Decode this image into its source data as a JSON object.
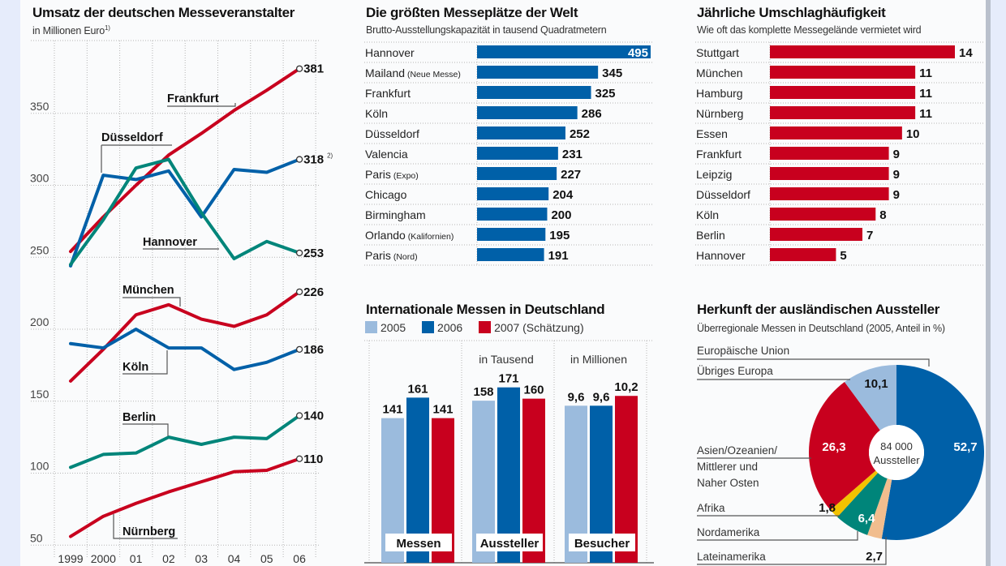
{
  "colors": {
    "red": "#c8001e",
    "blue": "#0060a8",
    "teal": "#00857a",
    "light_blue": "#9bbbdd",
    "yellow": "#f2c200",
    "peach": "#f1bd8e",
    "background": "#e6ecfb"
  },
  "chart_data": [
    {
      "type": "line",
      "title": "Umsatz der deutschen Messeveranstalter",
      "subtitle": "in Millionen Euro",
      "subtitle_footnote": "1)",
      "xlabel": "",
      "ylabel": "",
      "x": [
        "1999",
        "2000",
        "01",
        "02",
        "03",
        "04",
        "05",
        "06"
      ],
      "yticks": [
        50,
        100,
        150,
        200,
        250,
        300,
        350
      ],
      "ylim": [
        50,
        390
      ],
      "grid": true,
      "series": [
        {
          "name": "Frankfurt",
          "color": "#c8001e",
          "values": [
            254,
            278,
            300,
            321,
            336,
            352,
            366,
            381
          ],
          "end_label": "381",
          "end_footnote": ""
        },
        {
          "name": "Düsseldorf",
          "color": "#0060a8",
          "values": [
            244,
            307,
            304,
            310,
            278,
            311,
            309,
            318
          ],
          "end_label": "318",
          "end_footnote": "2)"
        },
        {
          "name": "Hannover",
          "color": "#00857a",
          "values": [
            245,
            276,
            312,
            318,
            281,
            249,
            261,
            253
          ],
          "end_label": "253",
          "end_footnote": ""
        },
        {
          "name": "München",
          "color": "#c8001e",
          "values": [
            164,
            186,
            210,
            217,
            207,
            202,
            210,
            226
          ],
          "end_label": "226",
          "end_footnote": ""
        },
        {
          "name": "Köln",
          "color": "#0060a8",
          "values": [
            190,
            187,
            200,
            187,
            187,
            172,
            177,
            186
          ],
          "end_label": "186",
          "end_footnote": ""
        },
        {
          "name": "Berlin",
          "color": "#00857a",
          "values": [
            104,
            113,
            114,
            125,
            120,
            125,
            124,
            140
          ],
          "end_label": "140",
          "end_footnote": ""
        },
        {
          "name": "Nürnberg",
          "color": "#c8001e",
          "values": [
            56,
            70,
            79,
            87,
            94,
            101,
            102,
            110
          ],
          "end_label": "110",
          "end_footnote": ""
        }
      ]
    },
    {
      "type": "bar",
      "orientation": "horizontal",
      "title": "Die größten Messeplätze der Welt",
      "subtitle": "Brutto-Ausstellungskapazität in tausend Quadratmetern",
      "categories": [
        {
          "name": "Hannover",
          "note": ""
        },
        {
          "name": "Mailand",
          "note": "(Neue Messe)"
        },
        {
          "name": "Frankfurt",
          "note": ""
        },
        {
          "name": "Köln",
          "note": ""
        },
        {
          "name": "Düsseldorf",
          "note": ""
        },
        {
          "name": "Valencia",
          "note": ""
        },
        {
          "name": "Paris",
          "note": "(Expo)"
        },
        {
          "name": "Chicago",
          "note": ""
        },
        {
          "name": "Birmingham",
          "note": ""
        },
        {
          "name": "Orlando",
          "note": "(Kalifornien)"
        },
        {
          "name": "Paris",
          "note": "(Nord)"
        }
      ],
      "values": [
        495,
        345,
        325,
        286,
        252,
        231,
        227,
        204,
        200,
        195,
        191
      ],
      "labels": [
        "495",
        "345",
        "325",
        "286",
        "252",
        "231",
        "227",
        "204",
        "200",
        "195",
        "191"
      ],
      "color": "#0060a8",
      "xlim": [
        0,
        495
      ]
    },
    {
      "type": "bar",
      "orientation": "horizontal",
      "title": "Jährliche Umschlaghäufigkeit",
      "subtitle": "Wie oft das komplette Messegelände vermietet wird",
      "categories": [
        "Stuttgart",
        "München",
        "Hamburg",
        "Nürnberg",
        "Essen",
        "Frankfurt",
        "Leipzig",
        "Düsseldorf",
        "Köln",
        "Berlin",
        "Hannover"
      ],
      "values": [
        14,
        11,
        11,
        11,
        10,
        9,
        9,
        9,
        8,
        7,
        5
      ],
      "labels": [
        "14",
        "11",
        "11",
        "11",
        "10",
        "9",
        "9",
        "9",
        "8",
        "7",
        "5"
      ],
      "color": "#c8001e",
      "xlim": [
        0,
        14
      ]
    },
    {
      "type": "bar",
      "title": "Internationale Messen in Deutschland",
      "legend": [
        {
          "name": "2005",
          "color": "#9bbbdd"
        },
        {
          "name": "2006",
          "color": "#0060a8"
        },
        {
          "name": "2007 (Schätzung)",
          "color": "#c8001e"
        }
      ],
      "legend_position": "top-left",
      "groups": [
        {
          "name": "Messen",
          "unit": "",
          "values": [
            141,
            161,
            141
          ],
          "labels": [
            "141",
            "161",
            "141"
          ],
          "ylim": [
            0,
            185
          ]
        },
        {
          "name": "Aussteller",
          "unit": "in Tausend",
          "values": [
            158,
            171,
            160
          ],
          "labels": [
            "158",
            "171",
            "160"
          ],
          "ylim": [
            0,
            185
          ]
        },
        {
          "name": "Besucher",
          "unit": "in Millionen",
          "values": [
            9.6,
            9.6,
            10.2
          ],
          "labels": [
            "9,6",
            "9,6",
            "10,2"
          ],
          "ylim": [
            0,
            11.6
          ]
        }
      ]
    },
    {
      "type": "pie",
      "variant": "donut",
      "title": "Herkunft der ausländischen Aussteller",
      "subtitle": "Überregionale Messen in Deutschland (2005, Anteil in %)",
      "center_label": [
        "84 000",
        "Aussteller"
      ],
      "slices": [
        {
          "name": "Europäische Union",
          "value": 52.7,
          "label": "52,7",
          "color": "#0060a8"
        },
        {
          "name": "Lateinamerika",
          "value": 2.7,
          "label": "2,7",
          "color": "#f1bd8e"
        },
        {
          "name": "Nordamerika",
          "value": 6.4,
          "label": "6,4",
          "color": "#00857a"
        },
        {
          "name": "Afrika",
          "value": 1.8,
          "label": "1,8",
          "color": "#f2c200"
        },
        {
          "name": "Asien/Ozeanien/ Mittlerer und Naher Osten",
          "value": 26.3,
          "label": "26,3",
          "color": "#c8001e"
        },
        {
          "name": "Übriges Europa",
          "value": 10.1,
          "label": "10,1",
          "color": "#9bbbdd"
        }
      ],
      "legend_labels": {
        "eu": "Europäische Union",
        "europe_other": "Übriges Europa",
        "asia": [
          "Asien/Ozeanien/",
          "Mittlerer und",
          "Naher Osten"
        ],
        "africa": "Afrika",
        "north_america": "Nordamerika",
        "latin_america": "Lateinamerika"
      }
    }
  ]
}
